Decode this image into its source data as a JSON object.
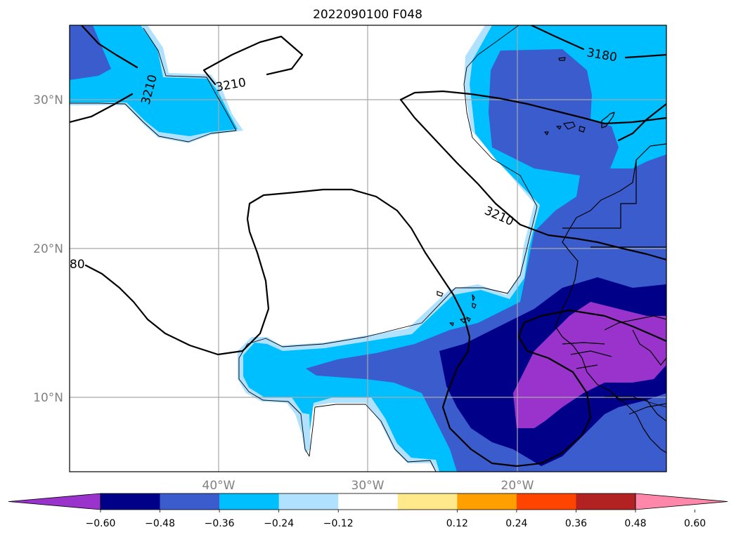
{
  "map": {
    "title": "2022090100 F048",
    "lat_labels": [
      "30°N",
      "20°N",
      "10°N"
    ],
    "lon_labels": [
      "40°W",
      "30°W",
      "20°W"
    ],
    "lat_ticks": [
      30,
      20,
      10
    ],
    "lon_ticks": [
      -40,
      -30,
      -20
    ],
    "extent": {
      "lon_min": -50,
      "lon_max": -10,
      "lat_min": 5,
      "lat_max": 35
    },
    "contour_labels": [
      "3210",
      "3210",
      "3210",
      "3180",
      "80"
    ],
    "colors": {
      "purple": "#9933cc",
      "navy": "#000088",
      "blue": "#3a5ccc",
      "cyan": "#00bfff",
      "lightblue": "#b0e2ff",
      "white": "#ffffff",
      "lightyellow": "#ffe98a",
      "orange": "#ffa000",
      "redorange": "#ff4400",
      "darkred": "#b22222",
      "pink": "#ff88aa"
    }
  },
  "colorbar": {
    "colors": [
      "#9933cc",
      "#000088",
      "#3a5ccc",
      "#00bfff",
      "#b0e2ff",
      "#ffffff",
      "#ffe98a",
      "#ffa000",
      "#ff4400",
      "#b22222",
      "#ff88aa"
    ],
    "tick_labels": [
      "−0.60",
      "−0.48",
      "−0.36",
      "−0.24",
      "−0.12",
      "0.12",
      "0.24",
      "0.36",
      "0.48",
      "0.60"
    ],
    "tick_values": [
      -0.6,
      -0.48,
      -0.36,
      -0.24,
      -0.12,
      0.12,
      0.24,
      0.36,
      0.48,
      0.6
    ]
  }
}
